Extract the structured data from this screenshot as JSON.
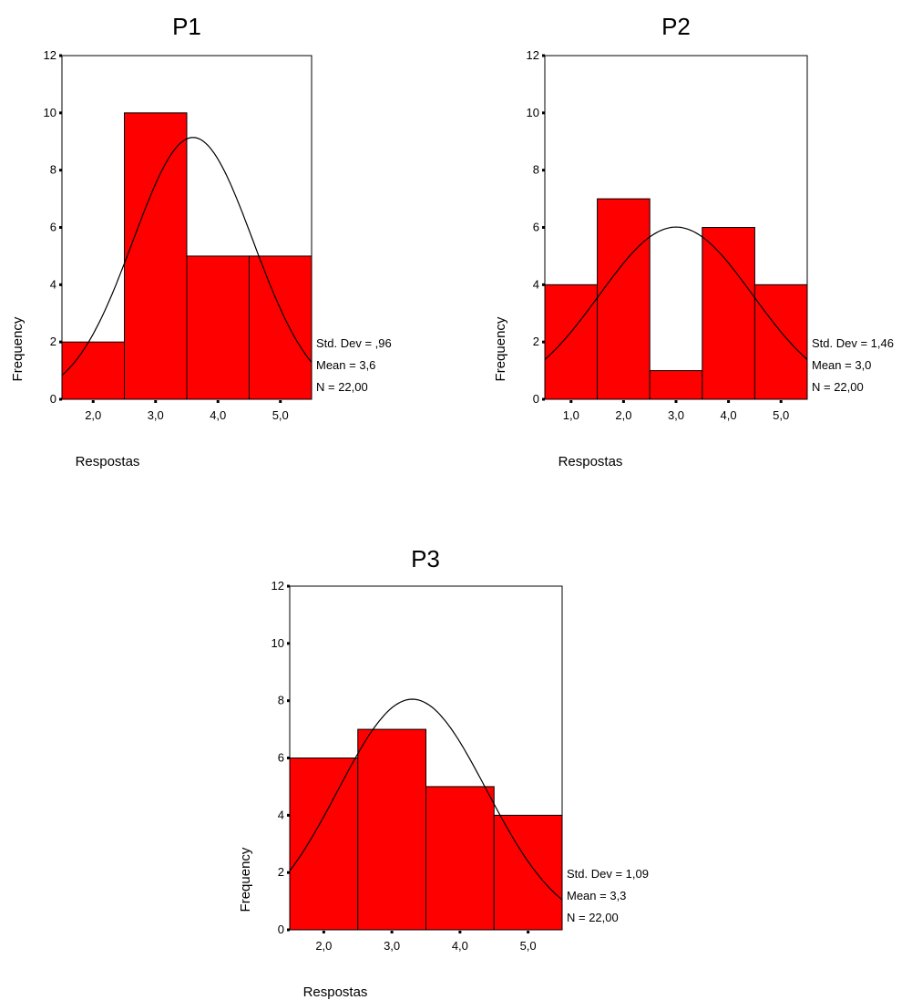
{
  "chart_data": [
    {
      "type": "bar",
      "title": "P1",
      "xlabel": "Respostas",
      "ylabel": "Frequency",
      "x_ticks": [
        "2,0",
        "3,0",
        "4,0",
        "5,0"
      ],
      "x_values": [
        2,
        3,
        4,
        5
      ],
      "values": [
        2,
        10,
        5,
        5
      ],
      "ylim": [
        0,
        12
      ],
      "y_ticks": [
        0,
        2,
        4,
        6,
        8,
        10,
        12
      ],
      "xlim": [
        1.5,
        5.5
      ],
      "normal_curve": {
        "mean": 3.6,
        "std": 0.96,
        "n": 22,
        "bin_width": 1
      },
      "stats": [
        "Std. Dev = ,96",
        "Mean = 3,6",
        "N = 22,00"
      ],
      "bar_color": "#ff0000"
    },
    {
      "type": "bar",
      "title": "P2",
      "xlabel": "Respostas",
      "ylabel": "Frequency",
      "x_ticks": [
        "1,0",
        "2,0",
        "3,0",
        "4,0",
        "5,0"
      ],
      "x_values": [
        1,
        2,
        3,
        4,
        5
      ],
      "values": [
        4,
        7,
        1,
        6,
        4
      ],
      "ylim": [
        0,
        12
      ],
      "y_ticks": [
        0,
        2,
        4,
        6,
        8,
        10,
        12
      ],
      "xlim": [
        0.5,
        5.5
      ],
      "normal_curve": {
        "mean": 3.0,
        "std": 1.46,
        "n": 22,
        "bin_width": 1
      },
      "stats": [
        "Std. Dev = 1,46",
        "Mean = 3,0",
        "N = 22,00"
      ],
      "bar_color": "#ff0000"
    },
    {
      "type": "bar",
      "title": "P3",
      "xlabel": "Respostas",
      "ylabel": "Frequency",
      "x_ticks": [
        "2,0",
        "3,0",
        "4,0",
        "5,0"
      ],
      "x_values": [
        2,
        3,
        4,
        5
      ],
      "values": [
        6,
        7,
        5,
        4
      ],
      "ylim": [
        0,
        12
      ],
      "y_ticks": [
        0,
        2,
        4,
        6,
        8,
        10,
        12
      ],
      "xlim": [
        1.5,
        5.5
      ],
      "normal_curve": {
        "mean": 3.3,
        "std": 1.09,
        "n": 22,
        "bin_width": 1
      },
      "stats": [
        "Std. Dev = 1,09",
        "Mean = 3,3",
        "N = 22,00"
      ],
      "bar_color": "#ff0000"
    }
  ]
}
